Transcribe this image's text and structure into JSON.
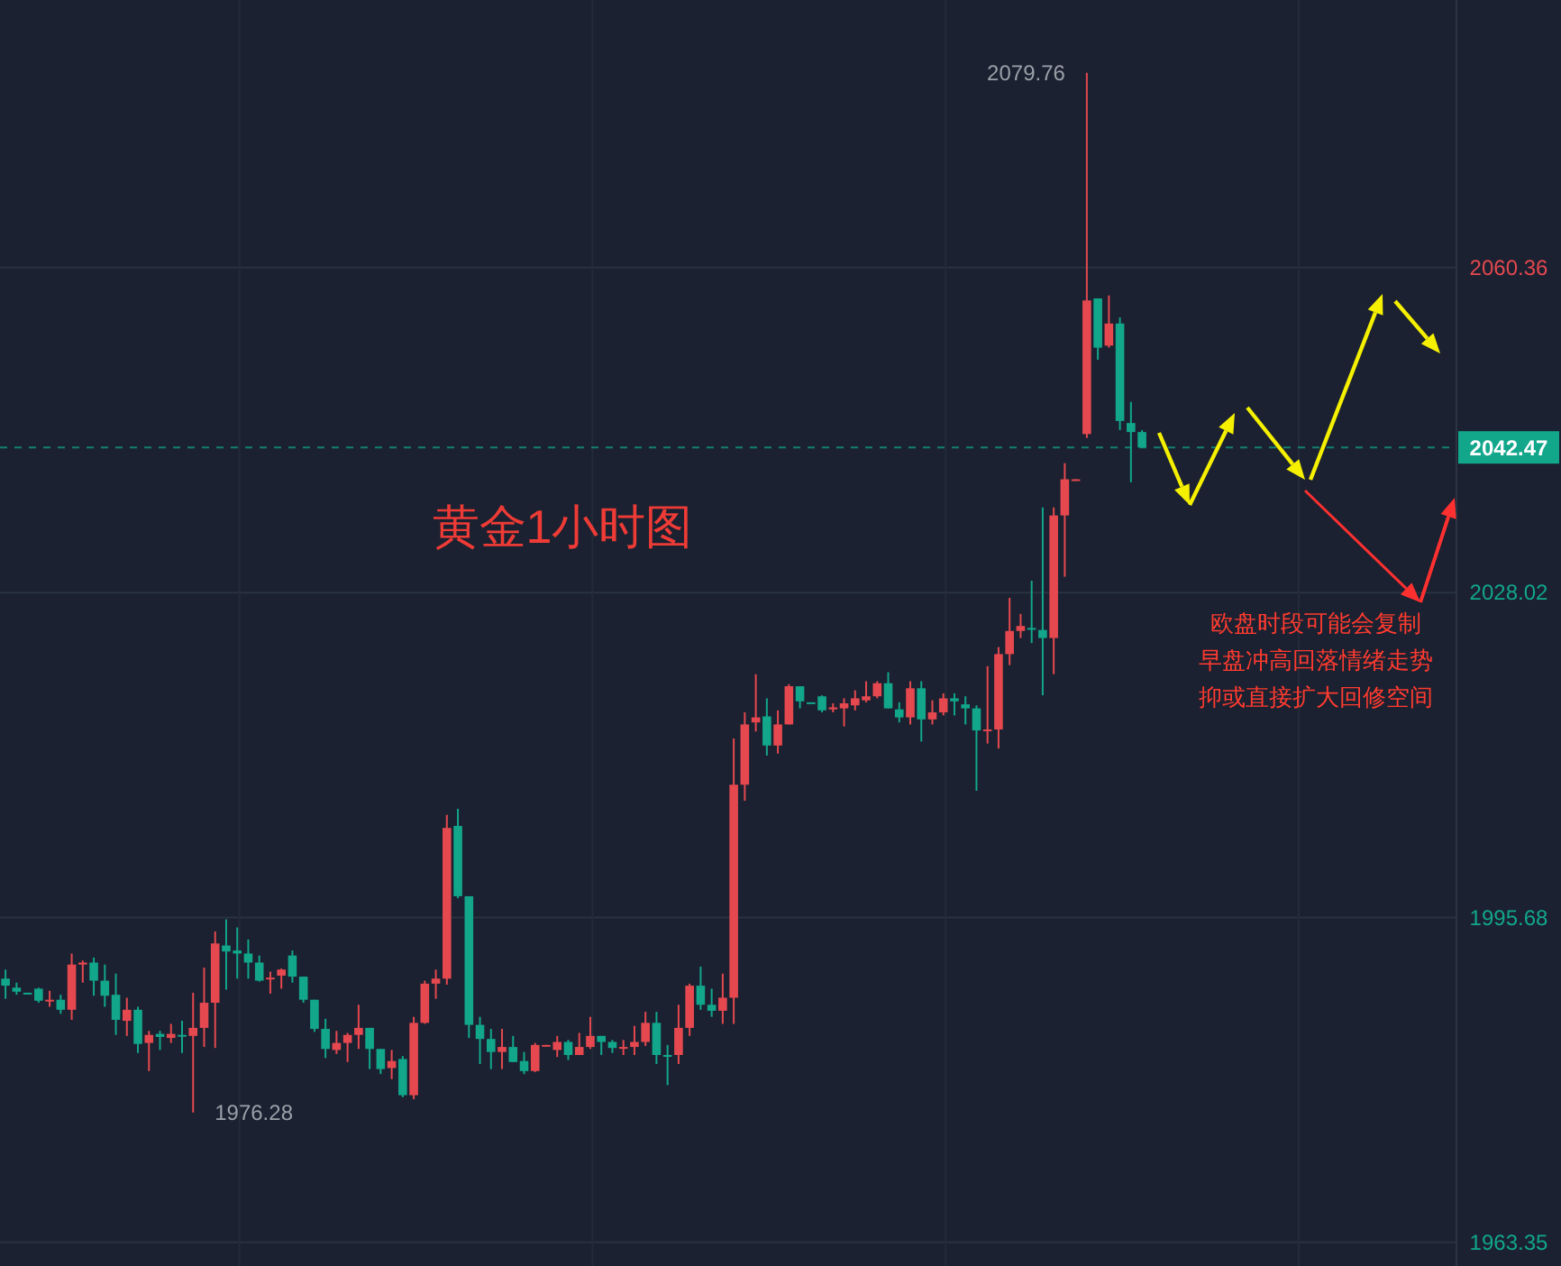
{
  "chart_data": {
    "type": "candlestick",
    "title": "黄金1小时图",
    "categories": [
      null,
      null,
      null,
      null,
      null,
      null,
      null,
      null,
      null,
      null,
      null,
      null,
      null,
      null,
      null,
      null,
      null,
      null,
      null,
      null,
      null,
      null,
      null,
      null,
      null,
      null,
      null,
      null,
      null,
      null,
      null,
      null,
      null,
      null,
      null,
      null,
      null,
      null,
      null,
      null,
      null,
      null,
      null,
      null,
      null,
      null,
      null,
      null,
      null,
      null,
      null,
      null,
      null,
      null,
      null,
      null,
      null,
      null,
      null,
      null,
      null,
      null,
      null,
      null,
      null,
      null,
      null,
      null,
      null,
      null,
      null,
      null,
      null,
      null,
      null,
      null,
      null,
      null,
      null,
      null,
      null,
      null,
      null,
      null,
      null,
      null,
      null,
      null,
      null,
      null,
      null,
      null,
      null,
      null,
      null,
      null,
      null,
      null,
      null,
      null,
      null,
      null,
      null,
      null,
      null,
      null,
      null,
      null,
      null,
      null,
      null,
      null,
      null,
      null,
      null,
      null,
      null,
      null,
      null,
      null,
      null,
      null,
      null,
      null,
      null,
      null,
      null,
      null,
      null,
      null,
      null,
      null
    ],
    "ohlc": [
      [
        1989.6,
        1990.5,
        1987.6,
        1988.9
      ],
      [
        1988.7,
        1989.2,
        1988.0,
        1988.3
      ],
      [
        1988.2,
        1988.2,
        1988.1,
        1988.1
      ],
      [
        1988.6,
        1988.7,
        1987.2,
        1987.4
      ],
      [
        1987.4,
        1988.4,
        1986.8,
        1987.5
      ],
      [
        1987.5,
        1988.0,
        1986.1,
        1986.5
      ],
      [
        1986.5,
        1992.1,
        1985.5,
        1991.0
      ],
      [
        1991.0,
        1991.4,
        1989.2,
        1991.2
      ],
      [
        1991.2,
        1991.7,
        1987.9,
        1989.4
      ],
      [
        1989.4,
        1991.0,
        1986.8,
        1987.9
      ],
      [
        1988.0,
        1990.1,
        1984.0,
        1985.5
      ],
      [
        1985.4,
        1987.7,
        1983.9,
        1986.5
      ],
      [
        1986.5,
        1986.8,
        1982.2,
        1983.1
      ],
      [
        1983.2,
        1984.4,
        1980.4,
        1984.0
      ],
      [
        1984.1,
        1984.4,
        1982.5,
        1983.8
      ],
      [
        1983.7,
        1985.1,
        1983.2,
        1984.1
      ],
      [
        1984.0,
        1985.4,
        1982.2,
        1983.9
      ],
      [
        1983.9,
        1988.2,
        1976.28,
        1984.7
      ],
      [
        1984.7,
        1990.7,
        1982.8,
        1987.2
      ],
      [
        1987.2,
        1994.3,
        1982.7,
        1993.1
      ],
      [
        1992.9,
        1995.5,
        1988.5,
        1992.3
      ],
      [
        1992.4,
        1994.7,
        1989.6,
        1992.1
      ],
      [
        1992.1,
        1993.5,
        1989.6,
        1991.2
      ],
      [
        1991.2,
        1991.9,
        1989.3,
        1989.4
      ],
      [
        1989.6,
        1990.3,
        1988.1,
        1989.7
      ],
      [
        1989.9,
        1990.6,
        1988.6,
        1990.5
      ],
      [
        1991.9,
        1992.4,
        1989.2,
        1989.8
      ],
      [
        1989.8,
        1989.8,
        1987.2,
        1987.5
      ],
      [
        1987.5,
        1987.5,
        1984.3,
        1984.6
      ],
      [
        1984.6,
        1985.6,
        1981.7,
        1982.6
      ],
      [
        1982.5,
        1984.4,
        1982.1,
        1983.2
      ],
      [
        1983.2,
        1984.2,
        1981.3,
        1984.0
      ],
      [
        1984.0,
        1987.0,
        1982.6,
        1984.7
      ],
      [
        1984.7,
        1984.7,
        1980.6,
        1982.6
      ],
      [
        1982.6,
        1982.6,
        1980.1,
        1980.6
      ],
      [
        1980.7,
        1982.5,
        1979.6,
        1981.4
      ],
      [
        1981.6,
        1981.9,
        1977.8,
        1978.0
      ],
      [
        1978.0,
        1985.8,
        1977.6,
        1985.2
      ],
      [
        1985.2,
        1989.4,
        1985.1,
        1989.1
      ],
      [
        1989.1,
        1990.5,
        1987.6,
        1989.6
      ],
      [
        1989.6,
        2005.9,
        1989.0,
        2004.6
      ],
      [
        2004.8,
        2006.5,
        1997.6,
        1997.8
      ],
      [
        1997.8,
        1997.8,
        1983.7,
        1985.0
      ],
      [
        1985.0,
        1985.8,
        1981.1,
        1983.6
      ],
      [
        1983.6,
        1984.6,
        1980.6,
        1982.3
      ],
      [
        1982.3,
        1984.6,
        1980.6,
        1982.8
      ],
      [
        1982.8,
        1983.9,
        1981.3,
        1981.3
      ],
      [
        1981.4,
        1982.3,
        1980.1,
        1980.4
      ],
      [
        1980.4,
        1983.2,
        1980.3,
        1983.0
      ],
      [
        1982.9,
        1983.0,
        1982.9,
        1983.0
      ],
      [
        1982.5,
        1983.9,
        1981.8,
        1983.3
      ],
      [
        1983.3,
        1983.5,
        1981.5,
        1982.0
      ],
      [
        1982.0,
        1984.2,
        1982.0,
        1982.8
      ],
      [
        1982.8,
        1985.8,
        1982.6,
        1983.9
      ],
      [
        1983.9,
        1983.9,
        1982.0,
        1983.3
      ],
      [
        1983.3,
        1983.5,
        1982.2,
        1982.7
      ],
      [
        1982.7,
        1983.5,
        1982.0,
        1982.8
      ],
      [
        1982.8,
        1984.9,
        1982.0,
        1983.3
      ],
      [
        1983.3,
        1986.3,
        1982.9,
        1985.2
      ],
      [
        1985.2,
        1986.3,
        1981.1,
        1982.0
      ],
      [
        1982.0,
        1983.0,
        1979.0,
        1981.9
      ],
      [
        1982.0,
        1987.0,
        1981.1,
        1984.7
      ],
      [
        1984.7,
        1989.1,
        1983.9,
        1988.9
      ],
      [
        1988.9,
        1990.8,
        1986.5,
        1987.0
      ],
      [
        1987.0,
        1988.6,
        1985.8,
        1986.4
      ],
      [
        1986.4,
        1990.1,
        1985.1,
        1987.7
      ],
      [
        1987.7,
        2013.5,
        1985.1,
        2008.9
      ],
      [
        2008.9,
        2016.1,
        2007.3,
        2014.9
      ],
      [
        2015.1,
        2019.9,
        2014.2,
        2015.6
      ],
      [
        2015.7,
        2017.5,
        2011.8,
        2012.8
      ],
      [
        2012.8,
        2016.3,
        2012.0,
        2014.9
      ],
      [
        2014.9,
        2018.9,
        2014.9,
        2018.7
      ],
      [
        2018.7,
        2018.7,
        2016.5,
        2017.2
      ],
      [
        2017.1,
        2017.1,
        2017.0,
        2017.0
      ],
      [
        2017.7,
        2017.8,
        2016.1,
        2016.3
      ],
      [
        2016.4,
        2017.0,
        2016.1,
        2016.6
      ],
      [
        2016.5,
        2017.5,
        2014.7,
        2017.0
      ],
      [
        2016.8,
        2018.3,
        2016.3,
        2017.5
      ],
      [
        2017.3,
        2019.2,
        2017.1,
        2017.7
      ],
      [
        2017.7,
        2019.2,
        2017.5,
        2019.0
      ],
      [
        2019.0,
        2020.1,
        2016.5,
        2016.5
      ],
      [
        2016.4,
        2017.1,
        2015.1,
        2015.6
      ],
      [
        2015.6,
        2019.2,
        2014.9,
        2018.5
      ],
      [
        2018.5,
        2019.2,
        2013.2,
        2015.4
      ],
      [
        2015.4,
        2017.3,
        2014.9,
        2016.1
      ],
      [
        2016.1,
        2018.0,
        2015.8,
        2017.5
      ],
      [
        2017.5,
        2018.0,
        2015.8,
        2017.2
      ],
      [
        2016.9,
        2017.7,
        2014.9,
        2016.5
      ],
      [
        2016.5,
        2016.8,
        2008.3,
        2014.3
      ],
      [
        2014.3,
        2020.7,
        2013.0,
        2014.4
      ],
      [
        2014.4,
        2022.6,
        2012.5,
        2021.9
      ],
      [
        2021.9,
        2027.5,
        2020.8,
        2024.2
      ],
      [
        2024.2,
        2025.9,
        2023.5,
        2024.7
      ],
      [
        2024.5,
        2029.2,
        2023.0,
        2024.4
      ],
      [
        2024.3,
        2036.5,
        2017.8,
        2023.5
      ],
      [
        2023.5,
        2036.5,
        2019.9,
        2035.7
      ],
      [
        2035.7,
        2040.9,
        2029.6,
        2039.3
      ],
      [
        2039.2,
        2039.3,
        2039.2,
        2039.3
      ],
      [
        2043.8,
        2079.76,
        2043.4,
        2057.1
      ],
      [
        2057.3,
        2057.3,
        2051.2,
        2052.4
      ],
      [
        2052.6,
        2057.6,
        2052.4,
        2054.8
      ],
      [
        2054.8,
        2055.4,
        2044.2,
        2045.1
      ],
      [
        2044.9,
        2047.0,
        2039.0,
        2044.0
      ],
      [
        2044.0,
        2044.2,
        2042.4,
        2042.47
      ],
      null,
      null,
      null,
      null,
      null,
      null,
      null,
      null,
      null,
      null,
      null,
      null,
      null,
      null,
      null,
      null,
      null,
      null,
      null,
      null,
      null,
      null,
      null,
      null,
      null,
      null,
      null,
      null
    ],
    "colors": [
      "#12a68b",
      "#12a68b",
      "#12a68b",
      "#12a68b",
      "#e5484f",
      "#12a68b",
      "#e5484f",
      "#e5484f",
      "#12a68b",
      "#12a68b",
      "#12a68b",
      "#e5484f",
      "#12a68b",
      "#e5484f",
      "#12a68b",
      "#e5484f",
      "#12a68b",
      "#e5484f",
      "#e5484f",
      "#e5484f",
      "#12a68b",
      "#12a68b",
      "#12a68b",
      "#12a68b",
      "#e5484f",
      "#e5484f",
      "#12a68b",
      "#12a68b",
      "#12a68b",
      "#12a68b",
      "#e5484f",
      "#e5484f",
      "#e5484f",
      "#12a68b",
      "#12a68b",
      "#e5484f",
      "#12a68b",
      "#e5484f",
      "#e5484f",
      "#e5484f",
      "#e5484f",
      "#12a68b",
      "#12a68b",
      "#12a68b",
      "#12a68b",
      "#e5484f",
      "#12a68b",
      "#12a68b",
      "#e5484f",
      "#e5484f",
      "#e5484f",
      "#12a68b",
      "#e5484f",
      "#e5484f",
      "#12a68b",
      "#12a68b",
      "#e5484f",
      "#e5484f",
      "#e5484f",
      "#12a68b",
      "#12a68b",
      "#e5484f",
      "#e5484f",
      "#12a68b",
      "#12a68b",
      "#e5484f",
      "#e5484f",
      "#e5484f",
      "#e5484f",
      "#12a68b",
      "#e5484f",
      "#e5484f",
      "#12a68b",
      "#12a68b",
      "#12a68b",
      "#e5484f",
      "#e5484f",
      "#e5484f",
      "#e5484f",
      "#e5484f",
      "#12a68b",
      "#12a68b",
      "#e5484f",
      "#12a68b",
      "#e5484f",
      "#e5484f",
      "#12a68b",
      "#12a68b",
      "#12a68b",
      "#e5484f",
      "#e5484f",
      "#e5484f",
      "#e5484f",
      "#12a68b",
      "#12a68b",
      "#e5484f",
      "#e5484f",
      "#e5484f",
      "#e5484f",
      "#12a68b",
      "#e5484f",
      "#12a68b",
      "#12a68b",
      "#12a68b",
      null,
      null,
      null,
      null,
      null,
      null,
      null,
      null,
      null,
      null,
      null,
      null,
      null,
      null,
      null,
      null,
      null,
      null,
      null,
      null,
      null,
      null,
      null,
      null,
      null,
      null,
      null,
      null
    ],
    "ylim": [
      1961,
      2087
    ],
    "yticks": [
      1963.35,
      1995.68,
      2028.02,
      2060.36
    ],
    "tick_labels": "y",
    "grid": true,
    "ref_lines": [
      {
        "axis": "y",
        "value": 2042.47,
        "label": "2042.47",
        "color": "#12a68b",
        "line_style": "dashed"
      }
    ],
    "annotations": [
      "2079.76",
      "1976.28",
      "欧盘时段可能会复制",
      "早盘冲高回落情绪走势",
      "抑或直接扩大回修空间"
    ]
  }
}
